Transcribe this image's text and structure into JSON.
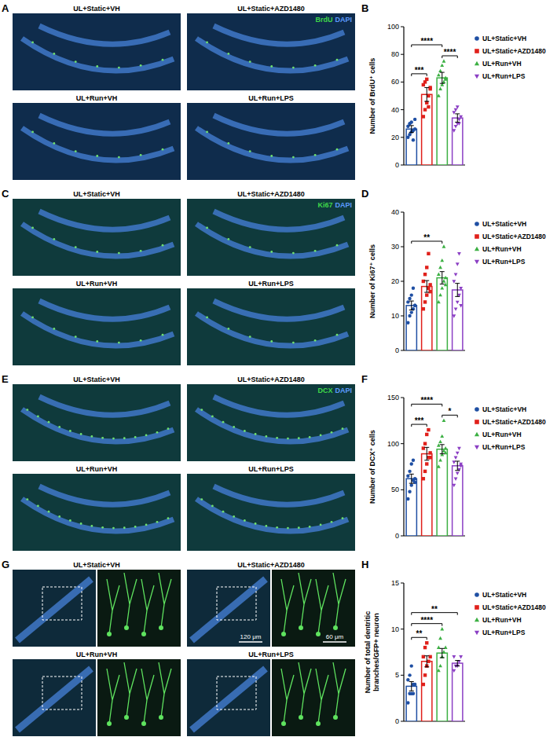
{
  "images": [
    {
      "letter": "A",
      "stains": [
        {
          "text": "BrdU",
          "color": "#3fd84a"
        },
        {
          "text": "DAPI",
          "color": "#5b9bff"
        }
      ],
      "panels": [
        "UL+Static+VH",
        "UL+Static+AZD1480",
        "UL+Run+VH",
        "UL+Run+LPS"
      ]
    },
    {
      "letter": "C",
      "stains": [
        {
          "text": "Ki67",
          "color": "#3fd84a"
        },
        {
          "text": "DAPI",
          "color": "#5b9bff"
        }
      ],
      "panels": [
        "UL+Static+VH",
        "UL+Static+AZD1480",
        "UL+Run+VH",
        "UL+Run+LPS"
      ]
    },
    {
      "letter": "E",
      "stains": [
        {
          "text": "DCX",
          "color": "#3fd84a"
        },
        {
          "text": "DAPI",
          "color": "#5b9bff"
        }
      ],
      "panels": [
        "UL+Static+VH",
        "UL+Static+AZD1480",
        "UL+Run+VH",
        "UL+Run+LPS"
      ]
    },
    {
      "letter": "G",
      "panels": [
        "UL+Static+VH",
        "UL+Static+AZD1480",
        "UL+Run+VH",
        "UL+Run+LPS"
      ],
      "scale_bars": [
        "120 μm",
        "60 μm"
      ]
    }
  ],
  "chart_data": [
    {
      "label": "B",
      "type": "bar",
      "ylabel": "Number of BrdU⁺ cells",
      "categories": [
        null
      ],
      "ylim": [
        0,
        100
      ],
      "yticks": [
        0,
        20,
        40,
        60,
        80,
        100
      ],
      "legend": "right",
      "series": [
        {
          "name": "UL+Static+VH",
          "color": "#1f4fa3",
          "marker": "circle",
          "values": [
            26
          ],
          "error": [
            2.5
          ],
          "points": [
            20,
            22,
            24,
            25,
            26,
            28,
            30,
            31,
            18,
            33
          ]
        },
        {
          "name": "UL+Static+AZD1480",
          "color": "#e0201b",
          "marker": "square",
          "values": [
            51
          ],
          "error": [
            5
          ],
          "points": [
            35,
            40,
            45,
            50,
            55,
            58,
            60,
            62,
            42,
            56
          ]
        },
        {
          "name": "UL+Run+VH",
          "color": "#3cb043",
          "marker": "triangle",
          "values": [
            63
          ],
          "error": [
            4
          ],
          "points": [
            50,
            55,
            58,
            60,
            63,
            65,
            68,
            72,
            75,
            62
          ]
        },
        {
          "name": "UL+Run+LPS",
          "color": "#8b3fc4",
          "marker": "triangle-down",
          "values": [
            34
          ],
          "error": [
            3
          ],
          "points": [
            25,
            28,
            30,
            33,
            35,
            38,
            40,
            42,
            30
          ]
        }
      ],
      "annotations": [
        {
          "text": "***",
          "series": [
            0,
            1
          ]
        },
        {
          "text": "****",
          "series": [
            0,
            2
          ]
        },
        {
          "text": "****",
          "series": [
            2,
            3
          ]
        }
      ]
    },
    {
      "label": "D",
      "type": "bar",
      "ylabel": "Number of Ki67⁺ cells",
      "categories": [
        null
      ],
      "ylim": [
        0,
        40
      ],
      "yticks": [
        0,
        10,
        20,
        30,
        40
      ],
      "legend": "right",
      "series": [
        {
          "name": "UL+Static+VH",
          "color": "#1f4fa3",
          "marker": "circle",
          "values": [
            13
          ],
          "error": [
            1.3
          ],
          "points": [
            8,
            10,
            11,
            12,
            13,
            14,
            15,
            16,
            18,
            13
          ]
        },
        {
          "name": "UL+Static+AZD1480",
          "color": "#e0201b",
          "marker": "square",
          "values": [
            18.5
          ],
          "error": [
            1.7
          ],
          "points": [
            12,
            14,
            16,
            18,
            19,
            20,
            22,
            24,
            28,
            17
          ]
        },
        {
          "name": "UL+Run+VH",
          "color": "#3cb043",
          "marker": "triangle",
          "values": [
            21
          ],
          "error": [
            1.8
          ],
          "points": [
            14,
            16,
            18,
            20,
            21,
            22,
            24,
            26,
            30,
            19
          ]
        },
        {
          "name": "UL+Run+LPS",
          "color": "#8b3fc4",
          "marker": "triangle-down",
          "values": [
            17.5
          ],
          "error": [
            1.9
          ],
          "points": [
            10,
            12,
            14,
            16,
            18,
            20,
            22,
            25,
            28,
            13
          ]
        }
      ],
      "annotations": [
        {
          "text": "**",
          "series": [
            0,
            2
          ]
        }
      ]
    },
    {
      "label": "F",
      "type": "bar",
      "ylabel": "Number of DCX⁺ cells",
      "categories": [
        null
      ],
      "ylim": [
        0,
        150
      ],
      "yticks": [
        0,
        50,
        100,
        150
      ],
      "legend": "right",
      "series": [
        {
          "name": "UL+Static+VH",
          "color": "#1f4fa3",
          "marker": "circle",
          "values": [
            62
          ],
          "error": [
            5
          ],
          "points": [
            40,
            48,
            55,
            60,
            62,
            65,
            70,
            78,
            82,
            58
          ]
        },
        {
          "name": "UL+Static+AZD1480",
          "color": "#e0201b",
          "marker": "square",
          "values": [
            89
          ],
          "error": [
            7
          ],
          "points": [
            62,
            70,
            78,
            85,
            90,
            95,
            100,
            110,
            115,
            85
          ]
        },
        {
          "name": "UL+Run+VH",
          "color": "#3cb043",
          "marker": "triangle",
          "values": [
            94
          ],
          "error": [
            5
          ],
          "points": [
            75,
            82,
            88,
            92,
            95,
            98,
            102,
            108,
            125,
            90
          ]
        },
        {
          "name": "UL+Run+LPS",
          "color": "#8b3fc4",
          "marker": "triangle-down",
          "values": [
            76
          ],
          "error": [
            5
          ],
          "points": [
            55,
            62,
            68,
            72,
            76,
            80,
            85,
            90,
            95,
            78
          ]
        }
      ],
      "annotations": [
        {
          "text": "***",
          "series": [
            0,
            1
          ]
        },
        {
          "text": "****",
          "series": [
            0,
            2
          ]
        },
        {
          "text": "*",
          "series": [
            2,
            3
          ]
        }
      ]
    },
    {
      "label": "H",
      "type": "bar",
      "ylabel": "Number of total dentritic branches/GFP+ neuron",
      "categories": [
        null
      ],
      "ylim": [
        0,
        15
      ],
      "yticks": [
        0,
        5,
        10,
        15
      ],
      "legend": "right",
      "series": [
        {
          "name": "UL+Static+VH",
          "color": "#1f4fa3",
          "marker": "circle",
          "values": [
            3.8
          ],
          "error": [
            0.5
          ],
          "points": [
            2,
            3,
            3,
            4,
            4,
            4.5,
            5,
            6,
            3
          ]
        },
        {
          "name": "UL+Static+AZD1480",
          "color": "#e0201b",
          "marker": "square",
          "values": [
            6.5
          ],
          "error": [
            0.6
          ],
          "points": [
            4,
            5,
            6,
            6.5,
            7,
            7,
            8,
            8.5
          ]
        },
        {
          "name": "UL+Run+VH",
          "color": "#3cb043",
          "marker": "triangle",
          "values": [
            7.4
          ],
          "error": [
            0.5
          ],
          "points": [
            5.5,
            6,
            7,
            7.5,
            8,
            8,
            9,
            10
          ]
        },
        {
          "name": "UL+Run+LPS",
          "color": "#8b3fc4",
          "marker": "triangle-down",
          "values": [
            6.3
          ],
          "error": [
            0.3
          ],
          "points": [
            5.5,
            6,
            6,
            6.5,
            7,
            7
          ]
        }
      ],
      "annotations": [
        {
          "text": "**",
          "series": [
            0,
            1
          ]
        },
        {
          "text": "****",
          "series": [
            0,
            2
          ]
        },
        {
          "text": "**",
          "series": [
            0,
            3
          ]
        }
      ]
    }
  ]
}
